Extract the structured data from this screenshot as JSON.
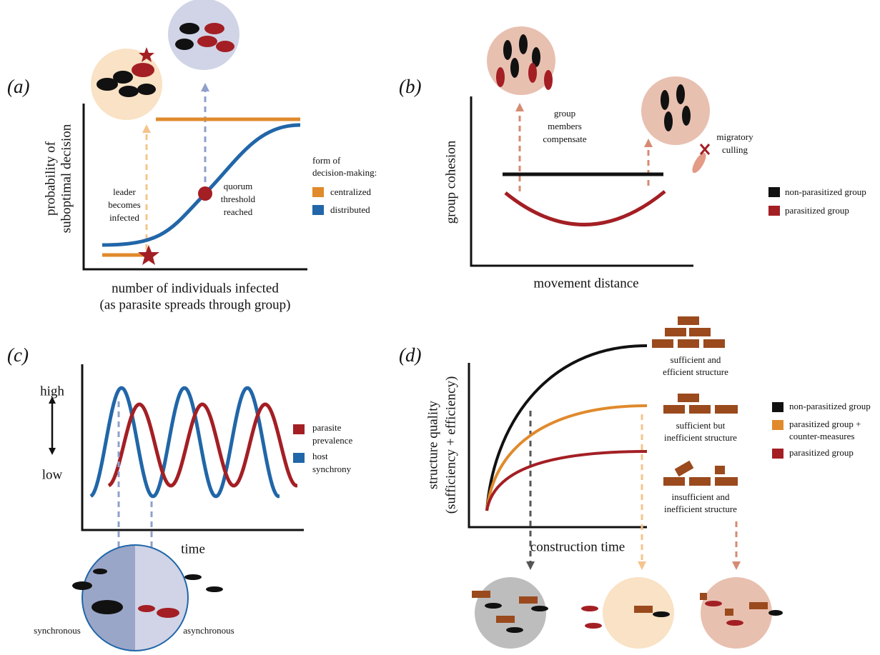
{
  "panel_a": {
    "label": "(a)",
    "y_axis_label": [
      "probability of",
      "suboptimal decision"
    ],
    "x_axis_label": [
      "number of individuals infected",
      "(as parasite spreads through group)"
    ],
    "leader_note": [
      "leader",
      "becomes",
      "infected"
    ],
    "quorum_note": [
      "quorum",
      "threshold",
      "reached"
    ],
    "legend_title": [
      "form of",
      "decision-making:"
    ],
    "legend": [
      "centralized",
      "distributed"
    ]
  },
  "panel_b": {
    "label": "(b)",
    "y_axis_label": "group cohesion",
    "x_axis_label": "movement distance",
    "compensate_note": [
      "group",
      "members",
      "compensate"
    ],
    "culling_note": [
      "migratory",
      "culling"
    ],
    "legend": [
      "non-parasitized group",
      "parasitized group"
    ]
  },
  "panel_c": {
    "label": "(c)",
    "high": "high",
    "low": "low",
    "x_axis_label": "time",
    "legend": [
      [
        "parasite",
        "prevalence"
      ],
      [
        "host",
        "synchrony"
      ]
    ],
    "synchronous": "synchronous",
    "asynchronous": "asynchronous"
  },
  "panel_d": {
    "label": "(d)",
    "y_axis_label": [
      "structure quality",
      "(sufficiency + efficiency)"
    ],
    "x_axis_label": "construction time",
    "structures": [
      [
        "sufficient and",
        "efficient structure"
      ],
      [
        "sufficient but",
        "inefficient structure"
      ],
      [
        "insufficient and",
        "inefficient structure"
      ]
    ],
    "legend": [
      [
        "non-parasitized group"
      ],
      [
        "parasitized group +",
        "counter-measures"
      ],
      [
        "parasitized group"
      ]
    ]
  }
}
